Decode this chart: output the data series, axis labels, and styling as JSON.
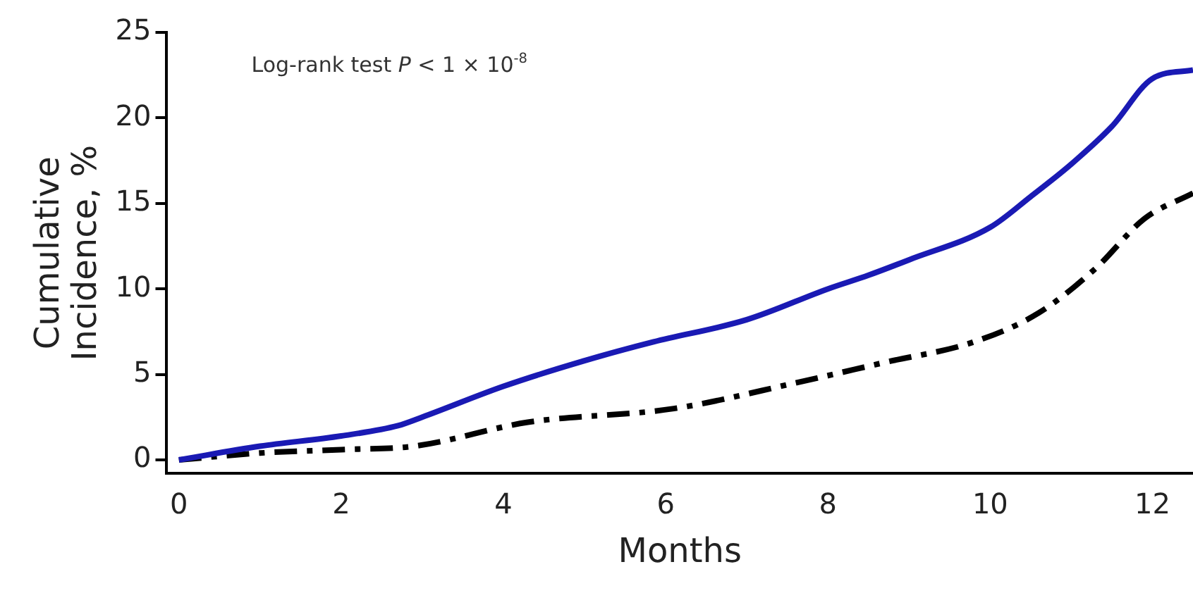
{
  "chart_data": {
    "type": "line",
    "xlabel": "Months",
    "ylabel": "Cumulative\nIncidence, %",
    "annotations": [
      "Log-rank test P < 1 × 10$^{-8}$"
    ],
    "xlim": [
      -0.15,
      12.5
    ],
    "xticks": [
      0,
      2,
      4,
      6,
      8,
      10,
      12
    ],
    "ylim": [
      -0.8,
      25
    ],
    "yticks": [
      0,
      5,
      10,
      15,
      20,
      25
    ],
    "grid": false,
    "legend": false,
    "marker": "none",
    "series": [
      {
        "color": "#1a1ab4",
        "line_style": "solid",
        "x": [
          0,
          1,
          2,
          2.7,
          3,
          4,
          5,
          5.85,
          7,
          8,
          8.5,
          9,
          10,
          10.5,
          11,
          11.5,
          12,
          12.5
        ],
        "values": [
          0,
          0.8,
          1.4,
          2,
          2.5,
          4.3,
          5.8,
          6.9,
          8.2,
          10,
          10.8,
          11.7,
          13.6,
          15.4,
          17.3,
          19.5,
          22.3,
          22.8
        ]
      },
      {
        "color": "#000000",
        "line_style": "dashed",
        "x": [
          0,
          1,
          2,
          2.9,
          4.3,
          6.1,
          7.6,
          8.7,
          9.8,
          10.6,
          11.3,
          11.9,
          12.5
        ],
        "values": [
          0,
          0.4,
          0.6,
          0.8,
          2.2,
          3,
          4.5,
          5.7,
          6.9,
          8.6,
          11.2,
          14.1,
          15.6
        ]
      }
    ]
  }
}
